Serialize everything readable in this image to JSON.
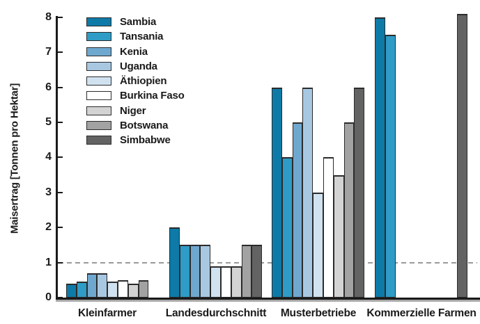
{
  "chart_data": {
    "type": "bar",
    "title": "",
    "xlabel": "",
    "ylabel": "Maisertrag [Tonnen pro Hektar]",
    "ylim": [
      0,
      8
    ],
    "y_ticks": [
      0,
      1,
      2,
      3,
      4,
      5,
      6,
      7,
      8
    ],
    "grid": false,
    "reference_line_y": 1,
    "reference_line_style": "dashed",
    "legend_position": "upper-left-inside",
    "categories": [
      "Kleinfarmer",
      "Landesdurchschnitt",
      "Musterbetriebe",
      "Kommerzielle Farmen"
    ],
    "series": [
      {
        "name": "Sambia",
        "color": "#0e7aa7",
        "values": [
          0.4,
          2.0,
          6.0,
          8.0
        ]
      },
      {
        "name": "Tansania",
        "color": "#2e9cc6",
        "values": [
          0.45,
          1.5,
          4.0,
          7.5
        ]
      },
      {
        "name": "Kenia",
        "color": "#6fa8cf",
        "values": [
          0.7,
          1.5,
          5.0,
          null
        ]
      },
      {
        "name": "Uganda",
        "color": "#a8c8e2",
        "values": [
          0.7,
          1.5,
          6.0,
          null
        ]
      },
      {
        "name": "Äthiopien",
        "color": "#d0e2f0",
        "values": [
          0.45,
          0.9,
          3.0,
          null
        ]
      },
      {
        "name": "Burkina Faso",
        "color": "#ffffff",
        "values": [
          0.5,
          0.9,
          4.0,
          null
        ]
      },
      {
        "name": "Niger",
        "color": "#d3d3d3",
        "values": [
          0.4,
          0.9,
          3.5,
          null
        ]
      },
      {
        "name": "Botswana",
        "color": "#a2a2a2",
        "values": [
          0.5,
          1.5,
          5.0,
          null
        ]
      },
      {
        "name": "Simbabwe",
        "color": "#636363",
        "values": [
          null,
          1.5,
          6.0,
          8.1
        ]
      }
    ],
    "colors": {
      "bar_border": "#2b2b2b",
      "axis": "#1a1a1a",
      "axis_shadow": "#a9a9a9",
      "reference_line": "#999999",
      "text": "#1a1a1a",
      "background": "#ffffff"
    }
  }
}
